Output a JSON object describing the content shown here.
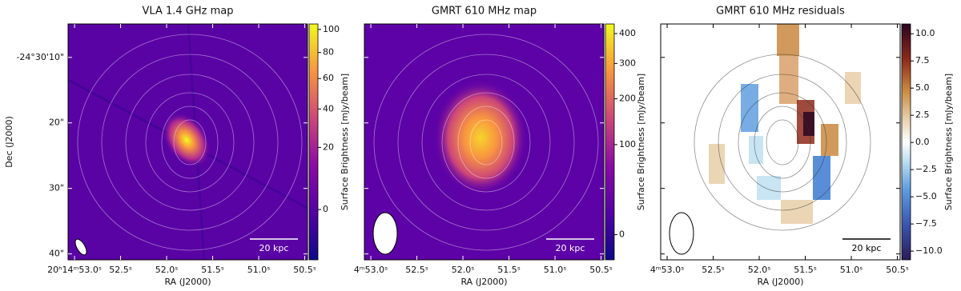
{
  "chart_data": [
    {
      "type": "heatmap",
      "title": "VLA 1.4 GHz map",
      "xlabel": "RA (J2000)",
      "ylabel": "Dec (J2000)",
      "xlim": [
        53.07,
        50.47
      ],
      "xticks": [
        {
          "value": 53.0,
          "label": "20ʰ14ᵐ53.0ˢ"
        },
        {
          "value": 52.5,
          "label": "52.5ˢ"
        },
        {
          "value": 52.0,
          "label": "52.0ˢ"
        },
        {
          "value": 51.5,
          "label": "51.5ˢ"
        },
        {
          "value": 51.0,
          "label": "51.0ˢ"
        },
        {
          "value": 50.5,
          "label": "50.5ˢ"
        }
      ],
      "ylim": [
        40.9,
        4.9
      ],
      "yticks": [
        {
          "value": 10,
          "label": "-24°30'10\""
        },
        {
          "value": 20,
          "label": "20\""
        },
        {
          "value": 30,
          "label": "30\""
        },
        {
          "value": 40,
          "label": "40\""
        }
      ],
      "colorbar": {
        "label": "Surface Brightness [mJy/beam]",
        "lim": [
          -5,
          105
        ],
        "scale": "sqrt",
        "colormap": "plasma",
        "ticks": [
          0,
          20,
          40,
          60,
          80,
          100
        ]
      },
      "scale_bar": "20 kpc"
    },
    {
      "type": "heatmap",
      "title": "GMRT 610 MHz map",
      "xlabel": "RA (J2000)",
      "xlim": [
        53.07,
        50.47
      ],
      "xticks": [
        {
          "value": 53.0,
          "label": "4ᵐ53.0ˢ"
        },
        {
          "value": 52.5,
          "label": "52.5ˢ"
        },
        {
          "value": 52.0,
          "label": "52.0ˢ"
        },
        {
          "value": 51.5,
          "label": "51.5ˢ"
        },
        {
          "value": 51.0,
          "label": "51.0ˢ"
        },
        {
          "value": 50.5,
          "label": "50.5ˢ"
        }
      ],
      "ylim": [
        40.9,
        4.9
      ],
      "colorbar": {
        "label": "Surface Brightness [mJy/beam]",
        "lim": [
          -5,
          435
        ],
        "scale": "sqrt",
        "colormap": "plasma",
        "ticks": [
          0,
          100,
          200,
          300,
          400
        ]
      },
      "scale_bar": "20 kpc"
    },
    {
      "type": "heatmap",
      "title": "GMRT 610 MHz residuals",
      "xlabel": "RA (J2000)",
      "xlim": [
        53.07,
        50.47
      ],
      "xticks": [
        {
          "value": 53.0,
          "label": "4ᵐ53.0ˢ"
        },
        {
          "value": 52.5,
          "label": "52.5ˢ"
        },
        {
          "value": 52.0,
          "label": "52.0ˢ"
        },
        {
          "value": 51.5,
          "label": "51.5ˢ"
        },
        {
          "value": 51.0,
          "label": "51.0ˢ"
        },
        {
          "value": 50.5,
          "label": "50.5ˢ"
        }
      ],
      "ylim": [
        40.9,
        4.9
      ],
      "colorbar": {
        "label": "Surface Brightness [mJy/beam]",
        "lim": [
          -10.8,
          10.9
        ],
        "scale": "linear",
        "colormap": "diverging",
        "ticks": [
          {
            "value": -10,
            "label": "−10.0"
          },
          {
            "value": -7.5,
            "label": "−7.5"
          },
          {
            "value": -5,
            "label": "−5.0"
          },
          {
            "value": -2.5,
            "label": "−2.5"
          },
          {
            "value": 0,
            "label": "0.0"
          },
          {
            "value": 2.5,
            "label": "2.5"
          },
          {
            "value": 5,
            "label": "5.0"
          },
          {
            "value": 7.5,
            "label": "7.5"
          },
          {
            "value": 10,
            "label": "10.0"
          }
        ]
      },
      "scale_bar": "20 kpc"
    }
  ]
}
